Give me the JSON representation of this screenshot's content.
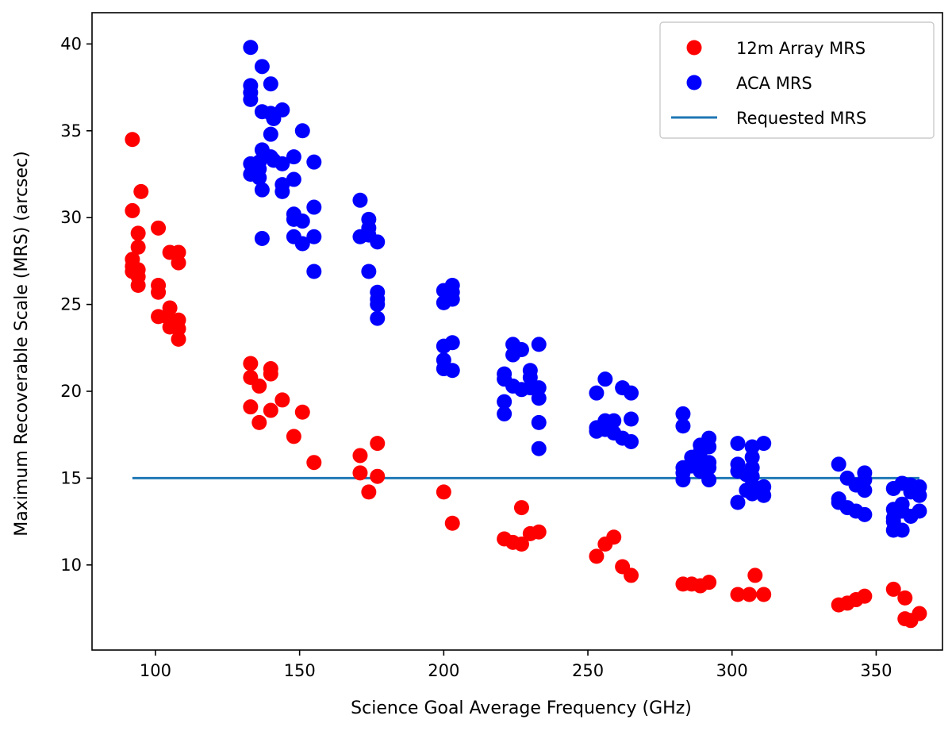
{
  "chart_data": {
    "type": "scatter",
    "title": "",
    "xlabel": "Science Goal Average Frequency (GHz)",
    "ylabel": "Maximum Recoverable Scale (MRS) (arcsec)",
    "xlim": [
      78,
      373
    ],
    "ylim": [
      5.1,
      41.8
    ],
    "xticks": [
      100,
      150,
      200,
      250,
      300,
      350
    ],
    "yticks": [
      10,
      15,
      20,
      25,
      30,
      35,
      40
    ],
    "legend": {
      "position": "top-right",
      "entries": [
        {
          "label": "12m Array MRS",
          "color": "#ff0000",
          "kind": "marker"
        },
        {
          "label": "ACA MRS",
          "color": "#0000ff",
          "kind": "marker"
        },
        {
          "label": "Requested MRS",
          "color": "#1f77b4",
          "kind": "line"
        }
      ]
    },
    "series": [
      {
        "name": "12m Array MRS",
        "color": "#ff0000",
        "points": [
          [
            92,
            34.5
          ],
          [
            92,
            30.4
          ],
          [
            92,
            27.6
          ],
          [
            92,
            27.2
          ],
          [
            92,
            26.9
          ],
          [
            94,
            29.1
          ],
          [
            94,
            28.3
          ],
          [
            94,
            27.0
          ],
          [
            94,
            26.6
          ],
          [
            94,
            26.1
          ],
          [
            95,
            31.5
          ],
          [
            101,
            29.4
          ],
          [
            101,
            26.1
          ],
          [
            101,
            25.7
          ],
          [
            101,
            24.3
          ],
          [
            104,
            24.3
          ],
          [
            105,
            28.0
          ],
          [
            105,
            24.8
          ],
          [
            105,
            23.7
          ],
          [
            108,
            28.0
          ],
          [
            108,
            27.4
          ],
          [
            108,
            24.1
          ],
          [
            108,
            23.6
          ],
          [
            108,
            23.0
          ],
          [
            133,
            21.6
          ],
          [
            133,
            20.8
          ],
          [
            133,
            19.1
          ],
          [
            136,
            18.2
          ],
          [
            136,
            20.3
          ],
          [
            140,
            21.3
          ],
          [
            140,
            21.0
          ],
          [
            140,
            18.9
          ],
          [
            144,
            19.5
          ],
          [
            148,
            17.4
          ],
          [
            151,
            18.8
          ],
          [
            155,
            15.9
          ],
          [
            171,
            16.3
          ],
          [
            171,
            15.3
          ],
          [
            174,
            14.2
          ],
          [
            177,
            17.0
          ],
          [
            177,
            15.1
          ],
          [
            200,
            14.2
          ],
          [
            203,
            12.4
          ],
          [
            221,
            11.5
          ],
          [
            224,
            11.3
          ],
          [
            227,
            11.2
          ],
          [
            227,
            13.3
          ],
          [
            230,
            11.8
          ],
          [
            233,
            11.9
          ],
          [
            253,
            10.5
          ],
          [
            256,
            11.2
          ],
          [
            259,
            11.6
          ],
          [
            262,
            9.9
          ],
          [
            265,
            9.4
          ],
          [
            283,
            8.9
          ],
          [
            286,
            8.9
          ],
          [
            289,
            8.8
          ],
          [
            292,
            9.0
          ],
          [
            302,
            8.3
          ],
          [
            306,
            8.3
          ],
          [
            308,
            9.4
          ],
          [
            311,
            8.3
          ],
          [
            337,
            7.7
          ],
          [
            340,
            7.8
          ],
          [
            343,
            8.0
          ],
          [
            346,
            8.2
          ],
          [
            356,
            8.6
          ],
          [
            360,
            8.1
          ],
          [
            360,
            6.9
          ],
          [
            362,
            6.8
          ],
          [
            365,
            7.2
          ]
        ]
      },
      {
        "name": "ACA MRS",
        "color": "#0000ff",
        "points": [
          [
            133,
            39.8
          ],
          [
            133,
            37.6
          ],
          [
            133,
            37.2
          ],
          [
            133,
            36.8
          ],
          [
            133,
            33.1
          ],
          [
            133,
            32.5
          ],
          [
            136,
            33.2
          ],
          [
            136,
            32.8
          ],
          [
            136,
            32.3
          ],
          [
            137,
            38.7
          ],
          [
            137,
            36.1
          ],
          [
            137,
            33.9
          ],
          [
            137,
            31.6
          ],
          [
            137,
            28.8
          ],
          [
            140,
            37.7
          ],
          [
            140,
            36.0
          ],
          [
            140,
            34.8
          ],
          [
            140,
            33.5
          ],
          [
            141,
            35.7
          ],
          [
            141,
            33.3
          ],
          [
            144,
            36.2
          ],
          [
            144,
            33.1
          ],
          [
            144,
            31.9
          ],
          [
            144,
            31.5
          ],
          [
            148,
            33.5
          ],
          [
            148,
            32.2
          ],
          [
            148,
            30.2
          ],
          [
            148,
            29.9
          ],
          [
            148,
            28.9
          ],
          [
            151,
            35.0
          ],
          [
            151,
            29.8
          ],
          [
            151,
            28.5
          ],
          [
            155,
            33.2
          ],
          [
            155,
            30.6
          ],
          [
            155,
            28.9
          ],
          [
            155,
            26.9
          ],
          [
            171,
            31.0
          ],
          [
            171,
            28.9
          ],
          [
            174,
            29.9
          ],
          [
            174,
            29.4
          ],
          [
            174,
            29.0
          ],
          [
            174,
            26.9
          ],
          [
            177,
            28.6
          ],
          [
            177,
            25.7
          ],
          [
            177,
            25.3
          ],
          [
            177,
            25.0
          ],
          [
            177,
            24.2
          ],
          [
            200,
            25.8
          ],
          [
            200,
            25.1
          ],
          [
            200,
            22.6
          ],
          [
            200,
            21.8
          ],
          [
            200,
            21.3
          ],
          [
            203,
            26.1
          ],
          [
            203,
            25.7
          ],
          [
            203,
            25.3
          ],
          [
            203,
            22.8
          ],
          [
            203,
            21.2
          ],
          [
            221,
            21.0
          ],
          [
            221,
            20.7
          ],
          [
            221,
            19.4
          ],
          [
            221,
            18.7
          ],
          [
            224,
            22.7
          ],
          [
            224,
            22.1
          ],
          [
            224,
            20.3
          ],
          [
            227,
            22.4
          ],
          [
            227,
            20.1
          ],
          [
            230,
            21.2
          ],
          [
            230,
            20.8
          ],
          [
            230,
            20.2
          ],
          [
            233,
            22.7
          ],
          [
            233,
            20.2
          ],
          [
            233,
            19.6
          ],
          [
            233,
            18.2
          ],
          [
            233,
            16.7
          ],
          [
            253,
            19.9
          ],
          [
            253,
            17.9
          ],
          [
            253,
            17.7
          ],
          [
            256,
            20.7
          ],
          [
            256,
            18.3
          ],
          [
            256,
            18.0
          ],
          [
            256,
            17.8
          ],
          [
            259,
            18.3
          ],
          [
            259,
            17.6
          ],
          [
            262,
            20.2
          ],
          [
            262,
            17.3
          ],
          [
            265,
            19.9
          ],
          [
            265,
            18.4
          ],
          [
            265,
            17.1
          ],
          [
            283,
            18.7
          ],
          [
            283,
            18.0
          ],
          [
            283,
            15.6
          ],
          [
            283,
            15.3
          ],
          [
            283,
            14.9
          ],
          [
            286,
            16.2
          ],
          [
            286,
            15.7
          ],
          [
            289,
            16.9
          ],
          [
            289,
            16.5
          ],
          [
            289,
            15.9
          ],
          [
            289,
            15.4
          ],
          [
            292,
            17.3
          ],
          [
            292,
            16.8
          ],
          [
            292,
            15.9
          ],
          [
            292,
            15.6
          ],
          [
            292,
            14.9
          ],
          [
            302,
            17.0
          ],
          [
            302,
            15.8
          ],
          [
            302,
            15.4
          ],
          [
            302,
            13.6
          ],
          [
            305,
            15.2
          ],
          [
            305,
            14.3
          ],
          [
            307,
            16.8
          ],
          [
            307,
            16.2
          ],
          [
            307,
            15.6
          ],
          [
            307,
            15.1
          ],
          [
            307,
            14.6
          ],
          [
            307,
            14.1
          ],
          [
            311,
            17.0
          ],
          [
            311,
            14.5
          ],
          [
            311,
            14.0
          ],
          [
            337,
            15.8
          ],
          [
            337,
            13.8
          ],
          [
            337,
            13.6
          ],
          [
            340,
            15.0
          ],
          [
            340,
            13.3
          ],
          [
            343,
            14.6
          ],
          [
            343,
            13.1
          ],
          [
            346,
            15.3
          ],
          [
            346,
            14.9
          ],
          [
            346,
            14.3
          ],
          [
            346,
            12.9
          ],
          [
            356,
            14.4
          ],
          [
            356,
            13.2
          ],
          [
            356,
            12.7
          ],
          [
            356,
            12.5
          ],
          [
            356,
            12.0
          ],
          [
            359,
            14.7
          ],
          [
            359,
            13.5
          ],
          [
            359,
            13.1
          ],
          [
            359,
            12.0
          ],
          [
            362,
            14.6
          ],
          [
            362,
            14.2
          ],
          [
            362,
            12.8
          ],
          [
            365,
            14.5
          ],
          [
            365,
            14.0
          ],
          [
            365,
            13.1
          ]
        ]
      }
    ],
    "lines": [
      {
        "name": "Requested MRS",
        "color": "#1f77b4",
        "x": [
          92,
          365
        ],
        "y": [
          15,
          15
        ]
      }
    ]
  }
}
